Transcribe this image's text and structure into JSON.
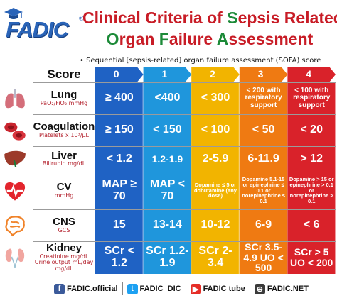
{
  "brand": {
    "name": "FADIC",
    "registered_mark": "®"
  },
  "title": {
    "line1": [
      {
        "text": "Clinical Criteria of ",
        "hl": false
      },
      {
        "text": "S",
        "hl": true
      },
      {
        "text": "epsis Related",
        "hl": false
      }
    ],
    "line2": [
      {
        "text": "O",
        "hl": true
      },
      {
        "text": "rgan ",
        "hl": false
      },
      {
        "text": "F",
        "hl": true
      },
      {
        "text": "ailure ",
        "hl": false
      },
      {
        "text": "A",
        "hl": true
      },
      {
        "text": "ssessment",
        "hl": false
      }
    ]
  },
  "subtitle": "•  Sequential [sepsis-related] organ failure assessment (SOFA) score",
  "table": {
    "score_label": "Score",
    "score_columns": [
      "0",
      "1",
      "2",
      "3",
      "4"
    ],
    "column_colors": [
      "#1f62c4",
      "#1f96dc",
      "#f2b400",
      "#ef7a12",
      "#d9222a"
    ],
    "rows": [
      {
        "organ": "Lung",
        "unit": "PaO₂/FiO₂ mmHg",
        "icon": "lungs-icon",
        "cells": [
          "≥ 400",
          "<400",
          "< 300",
          "< 200 with respiratory support",
          "< 100 with respiratory support"
        ],
        "sizes": [
          "big",
          "big",
          "big",
          "sm",
          "sm"
        ]
      },
      {
        "organ": "Coagulation",
        "unit": "Platelets x 10³/µL",
        "icon": "blood-cells-icon",
        "cells": [
          "≥ 150",
          "< 150",
          "< 100",
          "< 50",
          "< 20"
        ],
        "sizes": [
          "big",
          "big",
          "big",
          "big",
          "big"
        ]
      },
      {
        "organ": "Liver",
        "unit": "Bilirubin mg/dL",
        "icon": "liver-icon",
        "cells": [
          "< 1.2",
          "1.2-1.9",
          "2-5.9",
          "6-11.9",
          "> 12"
        ],
        "sizes": [
          "big",
          "med",
          "big",
          "big",
          "big"
        ]
      },
      {
        "organ": "CV",
        "unit": "mmHg",
        "icon": "heart-icon",
        "cells": [
          "MAP ≥ 70",
          "MAP < 70",
          "Dopamine ≤ 5 or dobutamine (any dose)",
          "Dopamine 5.1-15 or epinephrine ≤ 0.1 or norepinephrine ≤ 0.1",
          "Dopamine > 15 or epinephrine > 0.1 or norepinephrine > 0.1"
        ],
        "sizes": [
          "big",
          "big",
          "xs",
          "xs",
          "xs"
        ]
      },
      {
        "organ": "CNS",
        "unit": "GCS",
        "icon": "brain-icon",
        "cells": [
          "15",
          "13-14",
          "10-12",
          "6-9",
          "< 6"
        ],
        "sizes": [
          "big",
          "big",
          "big",
          "big",
          "big"
        ]
      },
      {
        "organ": "Kidney",
        "unit": "Creatinine mg/dL Urine output mL/day mg/dL",
        "icon": "kidneys-icon",
        "cells": [
          "SCr < 1.2",
          "SCr 1.2-1.9",
          "SCr 2-3.4",
          "SCr 3.5-4.9 UO < 500",
          "SCr > 5 UO < 200"
        ],
        "sizes": [
          "big",
          "big",
          "big",
          "med",
          "med"
        ]
      }
    ]
  },
  "footer": [
    {
      "icon": "facebook-icon",
      "glyph": "f",
      "color": "#3b5a9a",
      "text": "FADIC.official"
    },
    {
      "icon": "twitter-icon",
      "glyph": "t",
      "color": "#1da1f2",
      "text": "FADIC_DIC"
    },
    {
      "icon": "youtube-icon",
      "glyph": "▶",
      "color": "#e52d27",
      "text": "FADIC tube"
    },
    {
      "icon": "website-icon",
      "glyph": "⊕",
      "color": "#3a3a3a",
      "text": "FADIC.NET"
    }
  ]
}
